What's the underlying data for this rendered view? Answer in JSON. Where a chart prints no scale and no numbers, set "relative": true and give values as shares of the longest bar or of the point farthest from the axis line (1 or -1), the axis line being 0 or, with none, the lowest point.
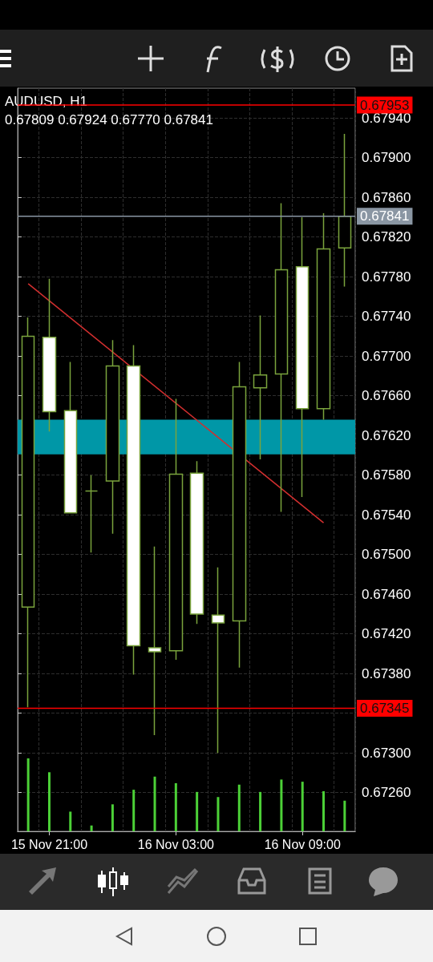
{
  "chart_data": [
    {
      "type": "candlestick",
      "title": "AUDUSD, H1",
      "subtitle": "0.67809 0.67924 0.67770 0.67841",
      "categories": [
        null,
        "15 Nov 21:00",
        null,
        null,
        null,
        null,
        null,
        "16 Nov 03:00",
        null,
        null,
        null,
        null,
        null,
        "16 Nov 09:00",
        null,
        null
      ],
      "color": "#7aa33c",
      "ohlc": [
        [
          0.67447,
          0.67739,
          0.67346,
          0.6772
        ],
        [
          0.67719,
          0.67778,
          0.67624,
          0.67644
        ],
        [
          0.67645,
          0.67694,
          0.67542,
          0.67542
        ],
        [
          0.67564,
          0.6758,
          0.67502,
          0.67564
        ],
        [
          0.67574,
          0.67716,
          0.67521,
          0.6769
        ],
        [
          0.6769,
          0.67711,
          0.67379,
          0.67408
        ],
        [
          0.67406,
          0.67508,
          0.67318,
          0.67402
        ],
        [
          0.67403,
          0.67657,
          0.67394,
          0.67581
        ],
        [
          0.67582,
          0.67594,
          0.6743,
          0.6744
        ],
        [
          0.67439,
          0.67487,
          0.673,
          0.67431
        ],
        [
          0.67433,
          0.67694,
          0.67386,
          0.67669
        ],
        [
          0.67668,
          0.67741,
          0.67596,
          0.67681
        ],
        [
          0.67682,
          0.67854,
          0.67543,
          0.67787
        ],
        [
          0.6779,
          0.6784,
          0.67558,
          0.67647
        ],
        [
          0.67647,
          0.67844,
          0.67636,
          0.67808
        ],
        [
          0.67809,
          0.67924,
          0.6777,
          0.67841
        ]
      ],
      "series": [
        {
          "type": "line",
          "color": "#d32f2f",
          "values": [
            0.67773,
            null,
            null,
            null,
            null,
            null,
            null,
            null,
            null,
            null,
            null,
            null,
            null,
            null,
            0.67532,
            null
          ]
        }
      ],
      "ylim": [
        0.67221,
        0.6797
      ],
      "yticks": [
        {
          "value": 0.6726,
          "label": "0.67260"
        },
        {
          "value": 0.673,
          "label": "0.67300"
        },
        {
          "value": 0.6734,
          "label": null
        },
        {
          "value": 0.6738,
          "label": "0.67380"
        },
        {
          "value": 0.6742,
          "label": "0.67420"
        },
        {
          "value": 0.6746,
          "label": "0.67460"
        },
        {
          "value": 0.675,
          "label": "0.67500"
        },
        {
          "value": 0.6754,
          "label": "0.67540"
        },
        {
          "value": 0.6758,
          "label": "0.67580"
        },
        {
          "value": 0.6762,
          "label": "0.67620"
        },
        {
          "value": 0.6766,
          "label": "0.67660"
        },
        {
          "value": 0.677,
          "label": "0.67700"
        },
        {
          "value": 0.6774,
          "label": "0.67740"
        },
        {
          "value": 0.6778,
          "label": "0.67780"
        },
        {
          "value": 0.6782,
          "label": "0.67820"
        },
        {
          "value": 0.6786,
          "label": "0.67860"
        },
        {
          "value": 0.679,
          "label": "0.67900"
        },
        {
          "value": 0.6794,
          "label": "0.67940"
        }
      ],
      "ref_lines": [
        {
          "axis": "y",
          "value": 0.67953,
          "label": "0.67953",
          "color": "#ff0000"
        },
        {
          "axis": "y",
          "value": 0.67841,
          "label": "0.67841",
          "color": "#8a96a3"
        },
        {
          "axis": "y",
          "value": 0.67345,
          "label": "0.67345",
          "color": "#ff0000"
        }
      ],
      "bands": [
        {
          "axis": "y",
          "from": 0.67601,
          "to": 0.67636,
          "color": "#0097a7"
        }
      ],
      "grid": true
    },
    {
      "type": "bar",
      "relative": true,
      "tick_labels": false,
      "color": "#4cd137",
      "categories": [
        null,
        null,
        null,
        null,
        null,
        null,
        null,
        null,
        null,
        null,
        null,
        null,
        null,
        null,
        null,
        null
      ],
      "values": [
        1,
        0.81,
        0.27,
        0.08,
        0.37,
        0.57,
        0.75,
        0.66,
        0.54,
        0.47,
        0.64,
        0.54,
        0.71,
        0.68,
        0.55,
        0.42
      ]
    }
  ]
}
